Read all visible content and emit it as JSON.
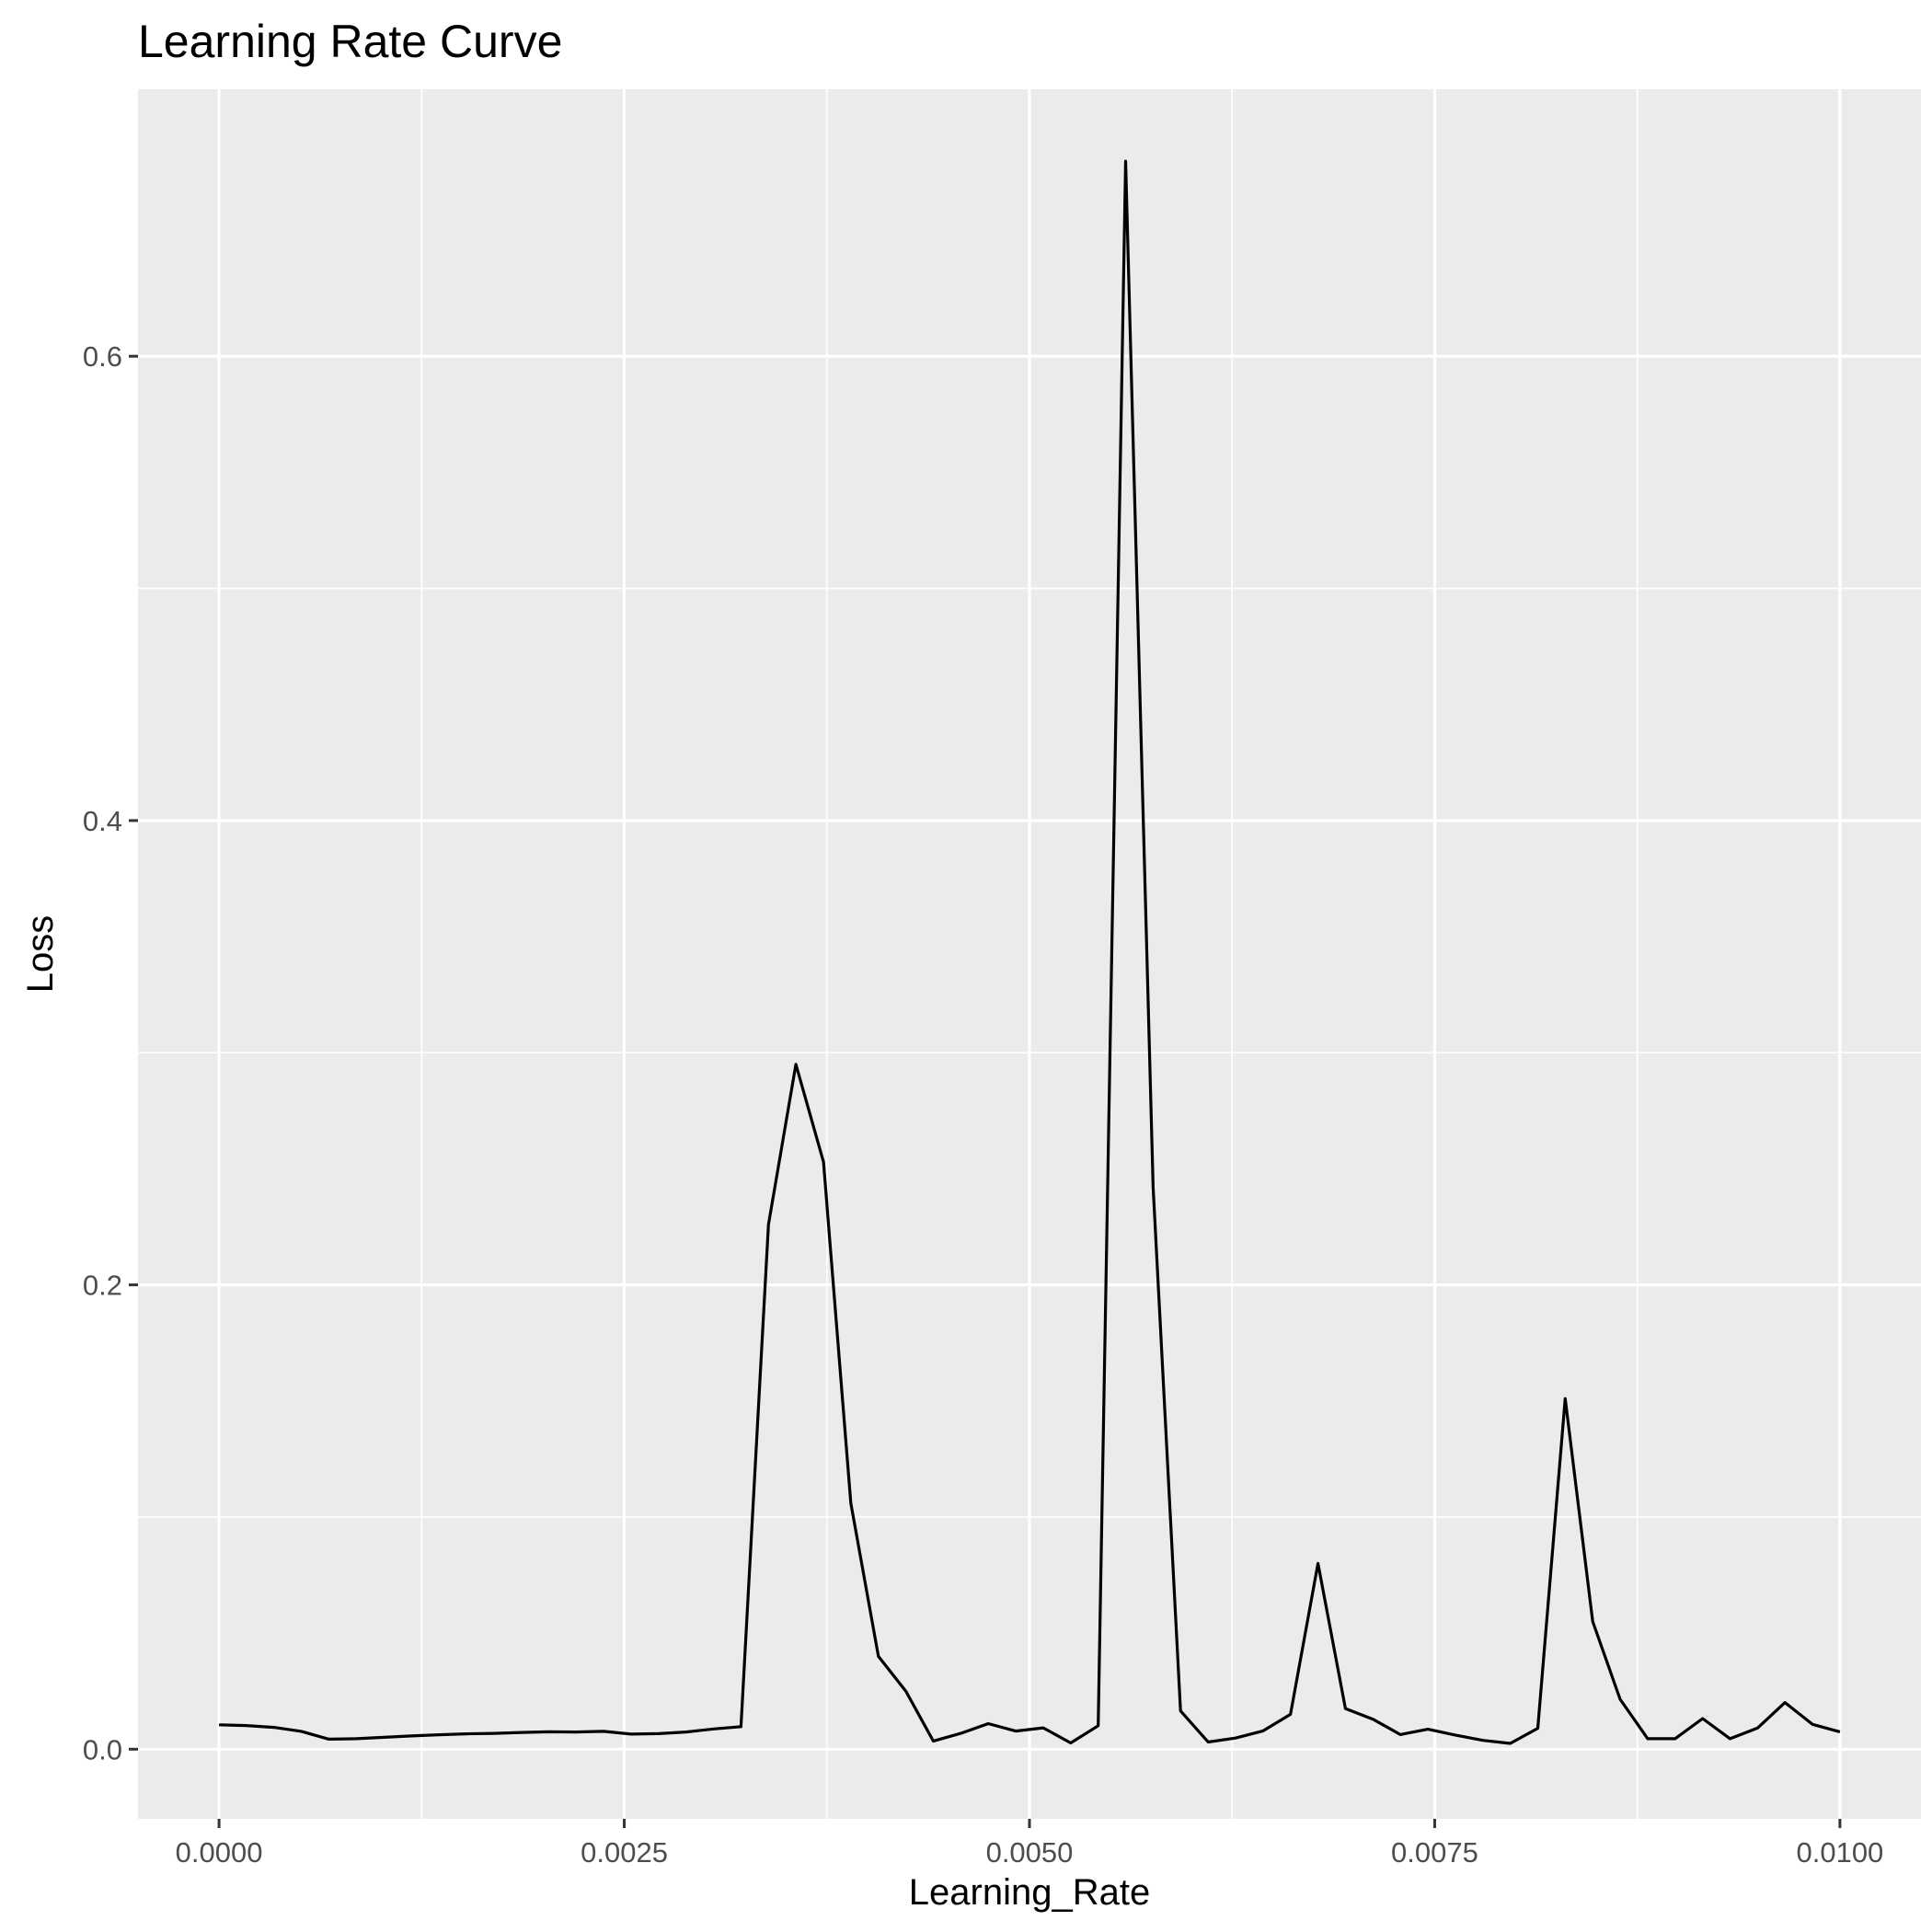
{
  "chart_data": {
    "type": "line",
    "title": "Learning Rate Curve",
    "xlabel": "Learning_Rate",
    "ylabel": "Loss",
    "xlim": [
      -0.0005,
      0.0105
    ],
    "ylim": [
      -0.03,
      0.715
    ],
    "x_ticks": [
      0.0,
      0.0025,
      0.005,
      0.0075,
      0.01
    ],
    "x_tick_labels": [
      "0.0000",
      "0.0025",
      "0.0050",
      "0.0075",
      "0.0100"
    ],
    "y_ticks": [
      0.0,
      0.2,
      0.4,
      0.6
    ],
    "y_tick_labels": [
      "0.0",
      "0.2",
      "0.4",
      "0.6"
    ],
    "grid": true,
    "legend": "none",
    "colors": {
      "panel": "#ebebeb",
      "grid": "#ffffff",
      "line": "#000000",
      "tick_text": "#4d4d4d"
    },
    "series": [
      {
        "x": [
          0.0,
          0.000169,
          0.000339,
          0.000508,
          0.000678,
          0.000847,
          0.001017,
          0.001186,
          0.001356,
          0.001525,
          0.001695,
          0.001864,
          0.002034,
          0.002203,
          0.002373,
          0.002542,
          0.002712,
          0.002881,
          0.003051,
          0.00322,
          0.00339,
          0.003559,
          0.003729,
          0.003898,
          0.004068,
          0.004237,
          0.004407,
          0.004576,
          0.004746,
          0.004915,
          0.005085,
          0.005254,
          0.005424,
          0.005593,
          0.005763,
          0.005932,
          0.006102,
          0.006271,
          0.006441,
          0.00661,
          0.00678,
          0.006949,
          0.007119,
          0.007288,
          0.007458,
          0.007627,
          0.007797,
          0.007966,
          0.008136,
          0.008305,
          0.008475,
          0.008644,
          0.008814,
          0.008983,
          0.009153,
          0.009322,
          0.009492,
          0.009661,
          0.009831,
          0.01
        ],
        "values": [
          0.0105,
          0.0102,
          0.0094,
          0.0077,
          0.0043,
          0.0045,
          0.0051,
          0.0057,
          0.0062,
          0.0066,
          0.0068,
          0.0072,
          0.0075,
          0.0074,
          0.0077,
          0.0065,
          0.0067,
          0.0074,
          0.0087,
          0.0097,
          0.226,
          0.295,
          0.253,
          0.106,
          0.04,
          0.025,
          0.0035,
          0.0068,
          0.011,
          0.0078,
          0.0092,
          0.0027,
          0.0101,
          0.684,
          0.242,
          0.0165,
          0.0031,
          0.0048,
          0.0079,
          0.015,
          0.08,
          0.0175,
          0.0129,
          0.0063,
          0.0086,
          0.0061,
          0.0038,
          0.0025,
          0.009,
          0.151,
          0.055,
          0.0215,
          0.0045,
          0.0045,
          0.0132,
          0.0045,
          0.0091,
          0.0201,
          0.0107,
          0.0075
        ]
      }
    ]
  }
}
